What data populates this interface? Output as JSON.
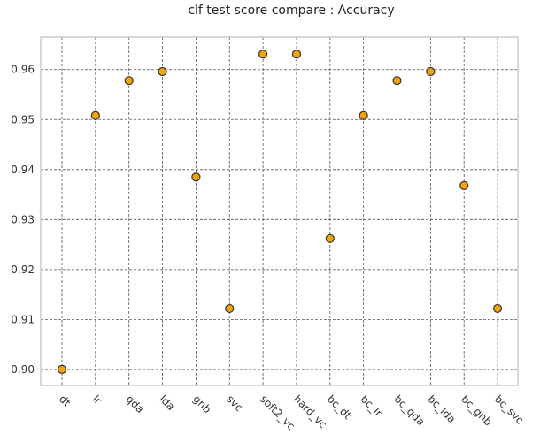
{
  "chart_data": {
    "type": "scatter",
    "title": "clf test score compare : Accuracy",
    "xlabel": "",
    "ylabel": "",
    "categories": [
      "dt",
      "lr",
      "qda",
      "lda",
      "gnb",
      "svc",
      "soft2_vc",
      "hard_vc",
      "bc_dt",
      "bc_lr",
      "bc_qda",
      "bc_lda",
      "bc_gnb",
      "bc_svc"
    ],
    "values": [
      0.9,
      0.9508,
      0.9578,
      0.9596,
      0.9385,
      0.9122,
      0.9631,
      0.9631,
      0.9262,
      0.9508,
      0.9578,
      0.9596,
      0.9368,
      0.9122
    ],
    "ylim": [
      0.8968,
      0.9665
    ],
    "yticks": [
      "0.90",
      "0.91",
      "0.92",
      "0.93",
      "0.94",
      "0.95",
      "0.96"
    ],
    "grid": true,
    "legend": "none",
    "marker_color": "#f0a30a",
    "marker_edge": "#333333"
  }
}
